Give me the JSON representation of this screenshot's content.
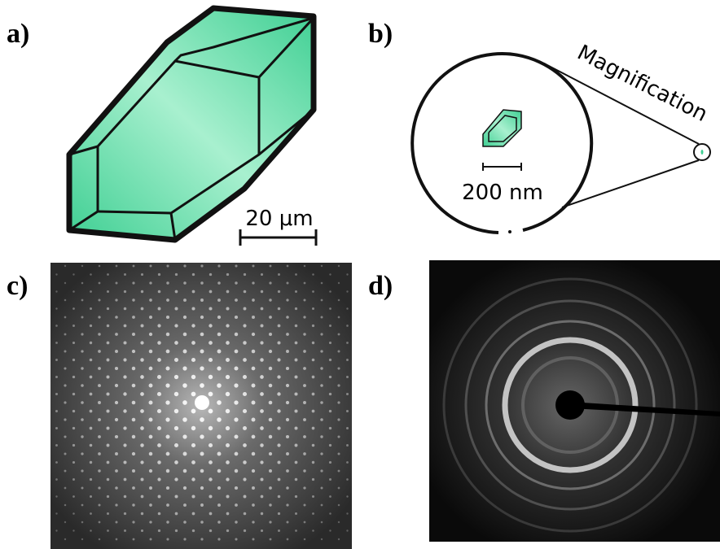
{
  "panels": {
    "a": {
      "label": "a)",
      "scale_bar": "20 μm"
    },
    "b": {
      "label": "b)",
      "scale_bar": "200 nm",
      "annotation": "Magnification"
    },
    "c": {
      "label": "c)"
    },
    "d": {
      "label": "d)"
    }
  }
}
